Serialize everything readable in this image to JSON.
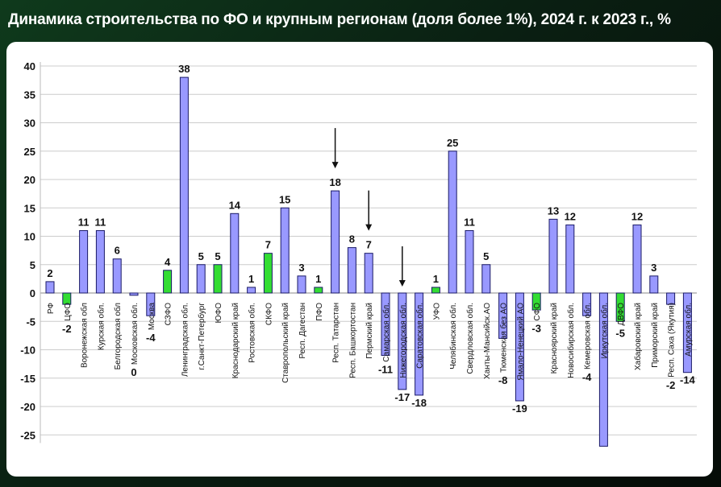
{
  "title": "Динамика строительства по ФО и крупным регионам (доля более 1%), 2024 г. к 2023 г., %",
  "colors": {
    "region": "#9999ff",
    "district": "#33dd33",
    "outline": "#1a1a66",
    "background": "#0f3a1c"
  },
  "chart_data": {
    "type": "bar",
    "title": "Динамика строительства по ФО и крупным регионам (доля более 1%), 2024 г. к 2023 г., %",
    "xlabel": "",
    "ylabel": "",
    "ylim": [
      -27,
      40
    ],
    "yticks": [
      40,
      35,
      30,
      25,
      20,
      15,
      10,
      5,
      0,
      -5,
      -10,
      -15,
      -20,
      -25
    ],
    "grid": true,
    "legend": "none",
    "categories": [
      "РФ",
      "ЦФО",
      "Воронежская обл",
      "Курская обл.",
      "Белгородская обл",
      "Московская обл.",
      "Москва",
      "СЗФО",
      "Ленинградская обл.",
      "г.Санкт-Петербург",
      "ЮФО",
      "Краснодарский край",
      "Ростовская обл.",
      "СКФО",
      "Ставропольский край",
      "Респ. Дагестан",
      "ПФО",
      "Респ. Татарстан",
      "Респ. Башкортостан",
      "Пермский край",
      "Самарская обл.",
      "Нижегородская обл.",
      "Саратовская обл.",
      "УФО",
      "Челябинская обл.",
      "Свердловская обл.",
      "Ханты-Мансийск.АО",
      "Тюменская без АО",
      "Ямало-Ненецкий АО",
      "СФО",
      "Красноярский край",
      "Новосибирская обл.",
      "Кемеровская обл.",
      "Иркутская обл.",
      "ДВФО",
      "Хабаровский край",
      "Приморский край",
      "Респ. Саха (Якутия)",
      "Амурская обл."
    ],
    "values": [
      2,
      -2,
      11,
      11,
      6,
      0,
      -4,
      4,
      38,
      5,
      5,
      14,
      1,
      7,
      15,
      3,
      1,
      18,
      8,
      7,
      -11,
      -17,
      -18,
      1,
      25,
      11,
      5,
      -8,
      -19,
      -3,
      13,
      12,
      -4,
      -27,
      -5,
      12,
      3,
      -2,
      -14
    ],
    "data_labels": [
      "2",
      "-2",
      "11",
      "11",
      "6",
      "0",
      "-4",
      "4",
      "38",
      "5",
      "5",
      "14",
      "1",
      "7",
      "15",
      "3",
      "1",
      "18",
      "8",
      "7",
      "-11",
      "-17",
      "-18",
      "1",
      "25",
      "11",
      "5",
      "-8",
      "-19",
      "-3",
      "13",
      "12",
      "-4",
      "",
      "-5",
      "12",
      "3",
      "-2",
      "-14"
    ],
    "federal_district": [
      false,
      true,
      false,
      false,
      false,
      false,
      false,
      true,
      false,
      false,
      true,
      false,
      false,
      true,
      false,
      false,
      true,
      false,
      false,
      false,
      false,
      false,
      false,
      true,
      false,
      false,
      false,
      false,
      false,
      true,
      false,
      false,
      false,
      false,
      true,
      false,
      false,
      false,
      false
    ],
    "arrows_on": [
      "Респ. Татарстан",
      "Пермский край",
      "Нижегородская обл."
    ]
  }
}
